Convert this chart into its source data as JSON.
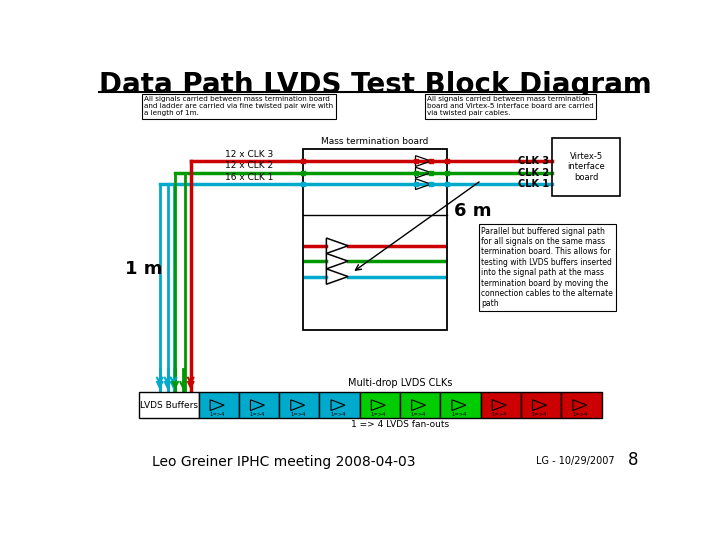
{
  "title": "Data Path LVDS Test Block Diagram",
  "footer_center": "Leo Greiner IPHC meeting 2008-04-03",
  "footer_right": "LG - 10/29/2007",
  "page_num": "8",
  "bg_color": "#ffffff",
  "note_top_left": "All signals carried between mass termination board\nand ladder are carried via fine twisted pair wire with\na length of 1m.",
  "note_top_right": "All signals carried between mass termination\nboard and Virtex-5 interface board are carried\nvia twisted pair cables.",
  "mass_term_board_label": "Mass termination board",
  "virtex_label": "Virtex-5\ninterface\nboard",
  "clk_labels": [
    "CLK 3",
    "CLK 2",
    "CLK 1"
  ],
  "signal_labels": [
    "12 x CLK 3",
    "12 x CLK 2",
    "16 x CLK 1"
  ],
  "c_red": "#cc0000",
  "c_green": "#009900",
  "c_cyan": "#00aacc",
  "label_6m": "6 m",
  "label_1m": "1 m",
  "buffer_label": "LVDS Buffers",
  "multidrop_label": "Multi-drop LVDS CLKs",
  "fanout_label": "1 => 4 LVDS fan-outs",
  "note_buffer": "Parallel but buffered signal path\nfor all signals on the same mass\ntermination board. This allows for\ntesting with LVDS buffers inserted\ninto the signal path at the mass\ntermination board by moving the\nconnection cables to the alternate\npath",
  "buf_cyan": "#00aacc",
  "buf_green": "#00cc00",
  "buf_red": "#cc0000"
}
